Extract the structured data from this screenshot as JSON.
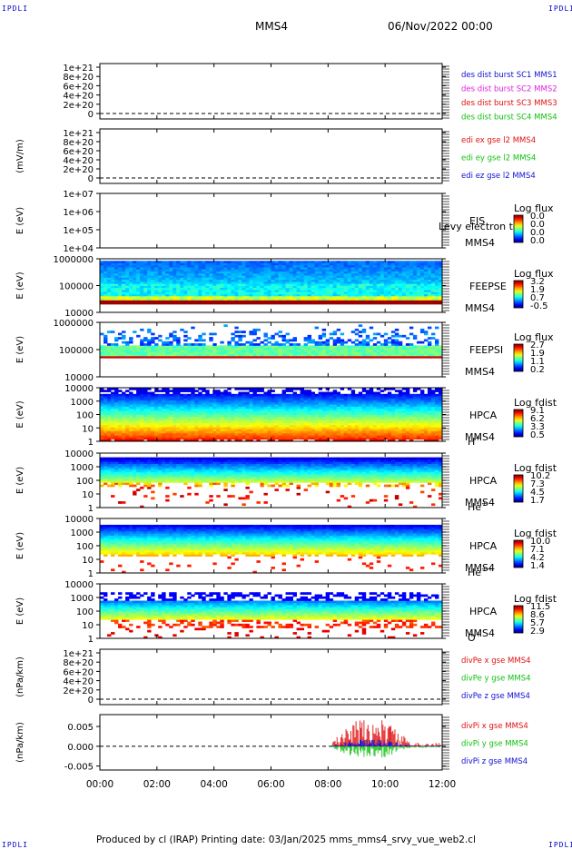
{
  "corners": {
    "tl": "IPDLI",
    "tr": "IPDLI",
    "bl": "IPDLI",
    "br": "IPDLI"
  },
  "header": {
    "spacecraft": "MMS4",
    "datetime": "06/Nov/2022 00:00"
  },
  "footer": {
    "text": "Produced by cl (IRAP)   Printing date: 03/Jan/2025   mms_mms4_srvy_vue_web2.cl"
  },
  "chart_data": {
    "type": "heatmap",
    "x_ticks": [
      "00:00",
      "02:00",
      "04:00",
      "06:00",
      "08:00",
      "10:00",
      "12:00"
    ],
    "x_range_hours": [
      0,
      12
    ],
    "panels": [
      {
        "id": "p1",
        "kind": "line",
        "ylabel": "",
        "yticks": [
          "1e+21",
          "8e+20",
          "6e+20",
          "4e+20",
          "2e+20",
          "0"
        ],
        "legend": [
          {
            "text": "des dist burst SC1 MMS1",
            "color": "#1010d0"
          },
          {
            "text": "des dist burst SC2 MMS2",
            "color": "#e020e0"
          },
          {
            "text": "des dist burst SC3 MMS3",
            "color": "#e01010"
          },
          {
            "text": "des dist burst SC4 MMS4",
            "color": "#10c010"
          }
        ]
      },
      {
        "id": "p2",
        "kind": "line",
        "ylabel": "(mV/m)",
        "yticks": [
          "1e+21",
          "8e+20",
          "6e+20",
          "4e+20",
          "2e+20",
          "0"
        ],
        "legend": [
          {
            "text": "edi ex gse l2 MMS4",
            "color": "#e01010"
          },
          {
            "text": "edi ey gse l2 MMS4",
            "color": "#10c010"
          },
          {
            "text": "edi ez gse l2 MMS4",
            "color": "#1010d0"
          }
        ]
      },
      {
        "id": "p3",
        "kind": "spec",
        "ylabel": "E (eV)",
        "yticks": [
          "1e+07",
          "1e+06",
          "1e+05",
          "1e+04"
        ],
        "labels": [
          "EIS",
          "MMS4"
        ],
        "overlay_text": "Levy electron to",
        "cbar_title": "Log flux",
        "cbar_ticks": [
          "0.0",
          "0.0",
          "0.0",
          "0.0"
        ]
      },
      {
        "id": "p4",
        "kind": "spec",
        "ylabel": "E (eV)",
        "yticks": [
          "1000000",
          "100000",
          "10000"
        ],
        "labels": [
          "FEEPSE",
          "MMS4"
        ],
        "cbar_title": "Log flux",
        "cbar_ticks": [
          "3.2",
          "1.9",
          "0.7",
          "-0.5"
        ]
      },
      {
        "id": "p5",
        "kind": "spec",
        "ylabel": "E (eV)",
        "yticks": [
          "1000000",
          "100000",
          "10000"
        ],
        "labels": [
          "FEEPSI",
          "MMS4"
        ],
        "cbar_title": "Log flux",
        "cbar_ticks": [
          "2.7",
          "1.9",
          "1.1",
          "0.2"
        ]
      },
      {
        "id": "p6",
        "kind": "spec",
        "ylabel": "E (eV)",
        "yticks": [
          "10000",
          "1000",
          "100",
          "10",
          "1"
        ],
        "labels": [
          "HPCA",
          "MMS4"
        ],
        "species": "H",
        "species_sup": "+",
        "cbar_title": "Log fdist",
        "cbar_ticks": [
          "9.1",
          "6.2",
          "3.3",
          "0.5"
        ]
      },
      {
        "id": "p7",
        "kind": "spec",
        "ylabel": "E (eV)",
        "yticks": [
          "10000",
          "1000",
          "100",
          "10",
          "1"
        ],
        "labels": [
          "HPCA",
          "MMS4"
        ],
        "species": "He",
        "species_sup": "+",
        "cbar_title": "Log fdist",
        "cbar_ticks": [
          "10.2",
          "7.3",
          "4.5",
          "1.7"
        ]
      },
      {
        "id": "p8",
        "kind": "spec",
        "ylabel": "E (eV)",
        "yticks": [
          "10000",
          "1000",
          "100",
          "10",
          "1"
        ],
        "labels": [
          "HPCA",
          "MMS4"
        ],
        "species": "He",
        "species_sup": "++",
        "cbar_title": "Log fdist",
        "cbar_ticks": [
          "10.0",
          "7.1",
          "4.2",
          "1.4"
        ]
      },
      {
        "id": "p9",
        "kind": "spec",
        "ylabel": "E (eV)",
        "yticks": [
          "10000",
          "1000",
          "100",
          "10",
          "1"
        ],
        "labels": [
          "HPCA",
          "MMS4"
        ],
        "species": "O",
        "species_sup": "+",
        "cbar_title": "Log fdist",
        "cbar_ticks": [
          "11.5",
          "8.6",
          "5.7",
          "2.9"
        ]
      },
      {
        "id": "p10",
        "kind": "line",
        "ylabel": "(nPa/km)",
        "yticks": [
          "1e+21",
          "8e+20",
          "6e+20",
          "4e+20",
          "2e+20",
          "0"
        ],
        "legend": [
          {
            "text": "divPe x gse MMS4",
            "color": "#e01010"
          },
          {
            "text": "divPe y gse MMS4",
            "color": "#10c010"
          },
          {
            "text": "divPe z gse MMS4",
            "color": "#1010d0"
          }
        ]
      },
      {
        "id": "p11",
        "kind": "line",
        "ylabel": "(nPa/km)",
        "yticks": [
          "0.005",
          "0.000",
          "-0.005"
        ],
        "ylim": [
          -0.006,
          0.008
        ],
        "data_start_hour": 8.0,
        "legend": [
          {
            "text": "divPi x gse MMS4",
            "color": "#e01010"
          },
          {
            "text": "divPi y gse MMS4",
            "color": "#10c010"
          },
          {
            "text": "divPi z gse MMS4",
            "color": "#1010d0"
          }
        ]
      }
    ]
  }
}
